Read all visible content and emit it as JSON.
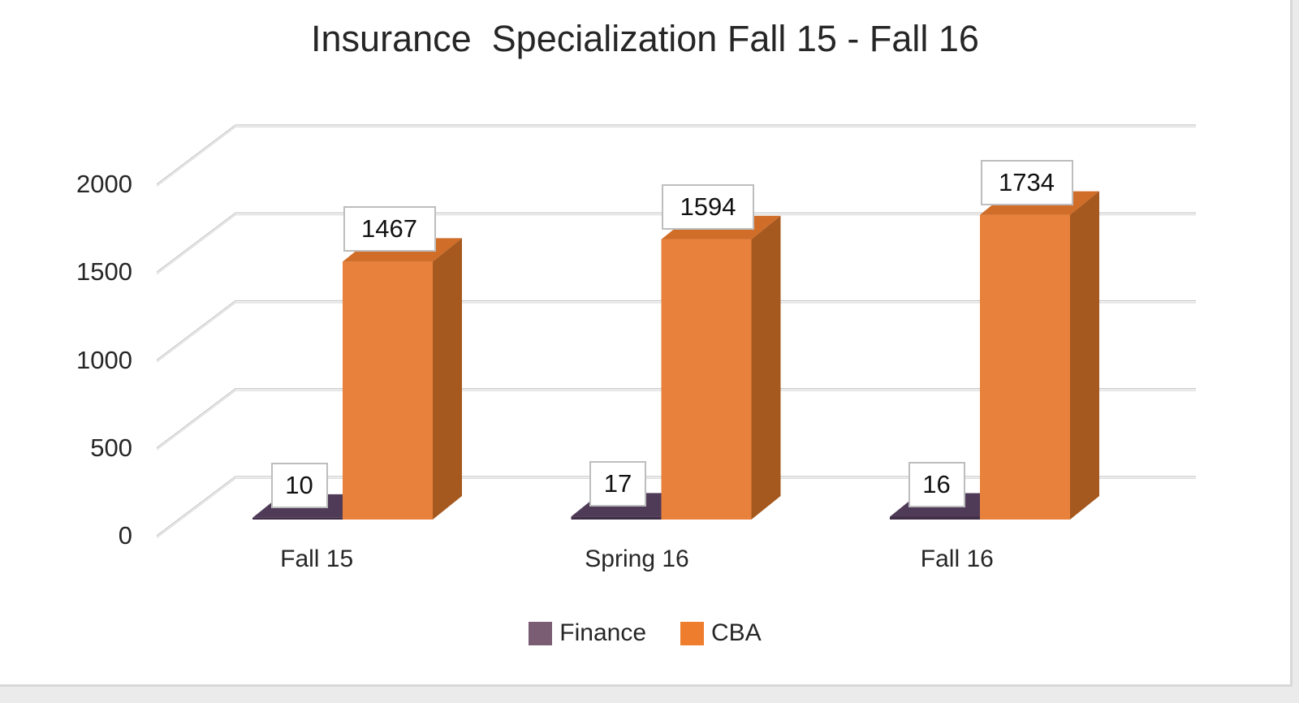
{
  "page": {
    "background": "#ffffff",
    "outside_background": "#ebebeb",
    "border_color": "#d8d8d8"
  },
  "chart_data": {
    "type": "bar",
    "variant": "3d-clustered-column",
    "title": "Insurance  Specialization Fall 15 - Fall 16",
    "categories": [
      "Fall 15",
      "Spring 16",
      "Fall 16"
    ],
    "series": [
      {
        "name": "Finance",
        "color": "#7b5d73",
        "front_color": "#402e49",
        "top_color": "#4f3b58",
        "side_color": "#352540",
        "values": [
          10,
          17,
          16
        ]
      },
      {
        "name": "CBA",
        "color": "#ee7d2e",
        "front_color": "#e8813b",
        "top_color": "#d06d28",
        "side_color": "#a5591f",
        "values": [
          1467,
          1594,
          1734
        ]
      }
    ],
    "y_axis": {
      "min": 0,
      "max": 2000,
      "ticks": [
        0,
        500,
        1000,
        1500,
        2000
      ],
      "tick_labels": [
        "0",
        "500",
        "1000",
        "1500",
        "2000"
      ]
    },
    "gridlines": true,
    "gridline_color": "#c6c6c6",
    "legend_position": "bottom",
    "data_labels_shown": true
  }
}
